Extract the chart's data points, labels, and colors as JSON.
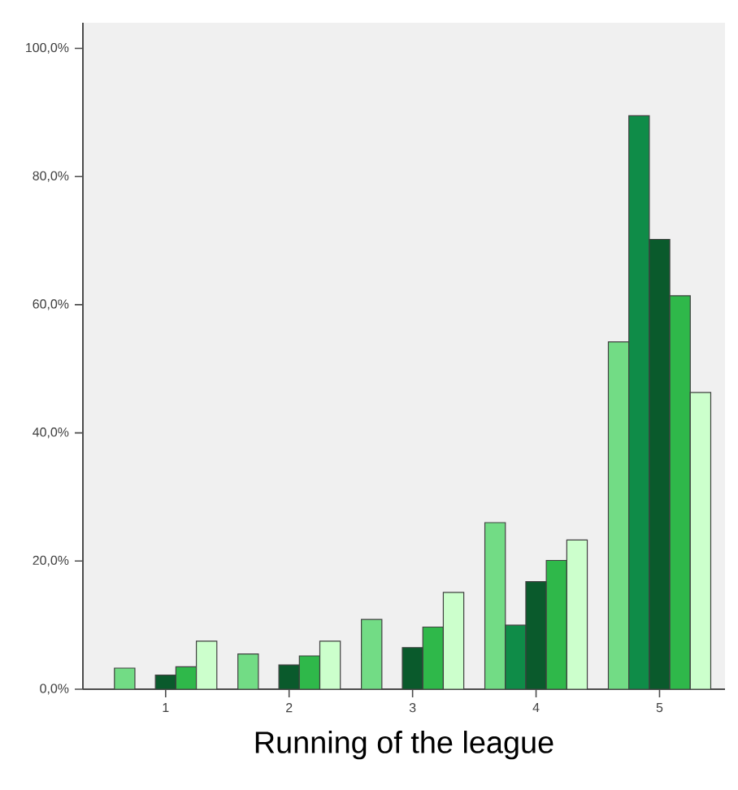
{
  "chart_data": {
    "type": "bar",
    "xlabel": "Running of the league",
    "categories": [
      "1",
      "2",
      "3",
      "4",
      "5"
    ],
    "series": [
      {
        "color": "#72dc85",
        "values": [
          3.3,
          5.5,
          10.9,
          26,
          54.2
        ]
      },
      {
        "color": "#0f8c48",
        "values": [
          0,
          0,
          0,
          10,
          89.5
        ]
      },
      {
        "color": "#0a5a2c",
        "values": [
          2.2,
          3.8,
          6.5,
          16.8,
          70.2
        ]
      },
      {
        "color": "#2fb84a",
        "values": [
          3.5,
          5.2,
          9.7,
          20.1,
          61.4
        ]
      },
      {
        "color": "#ccffcc",
        "values": [
          7.5,
          7.5,
          15.1,
          23.3,
          46.3
        ]
      }
    ],
    "ylim": [
      0,
      104
    ],
    "yticks": [
      {
        "value": 0,
        "label": "0,0%"
      },
      {
        "value": 20,
        "label": "20,0%"
      },
      {
        "value": 40,
        "label": "40,0%"
      },
      {
        "value": 60,
        "label": "60,0%"
      },
      {
        "value": 80,
        "label": "80,0%"
      },
      {
        "value": 100,
        "label": "100,0%"
      }
    ],
    "grid": false
  }
}
